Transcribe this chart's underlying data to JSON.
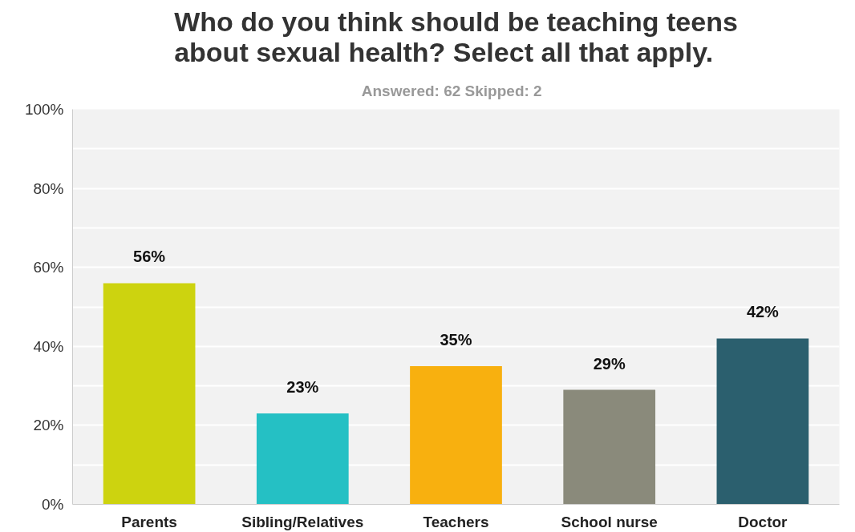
{
  "chart_data": {
    "type": "bar",
    "title": "Who do you think should be teaching teens about sexual health?  Select all that apply.",
    "subtitle": "Answered: 62   Skipped: 2",
    "categories": [
      "Parents",
      "Sibling/Relatives",
      "Teachers",
      "School nurse",
      "Doctor"
    ],
    "values": [
      56,
      23,
      35,
      29,
      42
    ],
    "colors": [
      "#cdd30f",
      "#25c0c4",
      "#f8b00f",
      "#8a8a7b",
      "#2b5f6e"
    ],
    "value_labels": [
      "56%",
      "23%",
      "35%",
      "29%",
      "42%"
    ],
    "ylim": [
      0,
      100
    ],
    "yticks": [
      {
        "value": 0,
        "label": "0%"
      },
      {
        "value": 10,
        "label": null
      },
      {
        "value": 20,
        "label": "20%"
      },
      {
        "value": 30,
        "label": null
      },
      {
        "value": 40,
        "label": "40%"
      },
      {
        "value": 50,
        "label": null
      },
      {
        "value": 60,
        "label": "60%"
      },
      {
        "value": 70,
        "label": null
      },
      {
        "value": 80,
        "label": "80%"
      },
      {
        "value": 90,
        "label": null
      },
      {
        "value": 100,
        "label": "100%"
      }
    ],
    "grid": "y"
  }
}
